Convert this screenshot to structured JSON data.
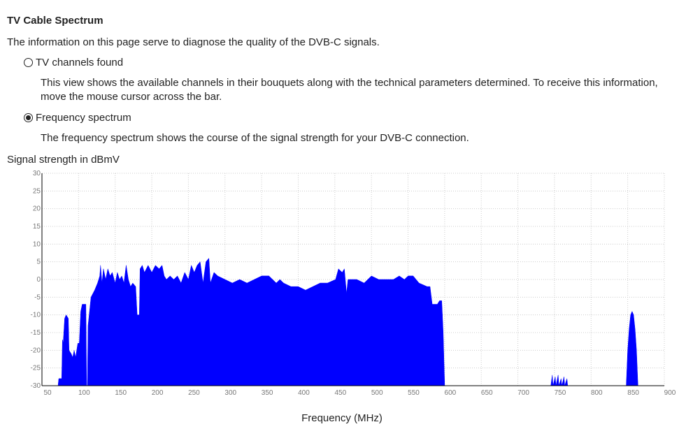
{
  "header": {
    "title": "TV Cable Spectrum",
    "intro": "The information on this page serve to diagnose the quality of the DVB-C signals."
  },
  "options": [
    {
      "label": "TV channels found",
      "description": "This view shows the available channels in their bouquets along with the technical parameters determined. To receive this information, move the mouse cursor across the bar.",
      "selected": false
    },
    {
      "label": "Frequency spectrum",
      "description": "The frequency spectrum shows the course of the signal strength for your DVB-C connection.",
      "selected": true
    }
  ],
  "chart_data": {
    "type": "area",
    "y_label": "Signal strength in dBmV",
    "x_label": "Frequency (MHz)",
    "xlim": [
      50,
      900
    ],
    "xticks": [
      50,
      100,
      150,
      200,
      250,
      300,
      350,
      400,
      450,
      500,
      550,
      600,
      650,
      700,
      750,
      800,
      850,
      900
    ],
    "ylim": [
      -30,
      30
    ],
    "yticks": [
      30,
      25,
      20,
      15,
      10,
      5,
      0,
      -5,
      -10,
      -15,
      -20,
      -25,
      -30
    ],
    "grid": true,
    "x": [
      72,
      73,
      77,
      78,
      79,
      81,
      83,
      86,
      87,
      90,
      92,
      94,
      96,
      99,
      101,
      103,
      105,
      110,
      111,
      112,
      113,
      117,
      122,
      126,
      129,
      130,
      132,
      134,
      137,
      140,
      143,
      146,
      150,
      153,
      156,
      159,
      162,
      165,
      168,
      171,
      174,
      178,
      180,
      183,
      184,
      187,
      190,
      195,
      200,
      205,
      210,
      214,
      217,
      220,
      225,
      230,
      235,
      240,
      245,
      250,
      254,
      258,
      262,
      266,
      270,
      274,
      278,
      280,
      285,
      290,
      300,
      310,
      320,
      330,
      340,
      350,
      360,
      370,
      375,
      380,
      390,
      400,
      410,
      420,
      430,
      440,
      451,
      455,
      460,
      463,
      466,
      468,
      475,
      480,
      490,
      500,
      510,
      520,
      530,
      538,
      545,
      550,
      557,
      565,
      576,
      580,
      583,
      590,
      593,
      596,
      598,
      600,
      650,
      745,
      747,
      748,
      751,
      752,
      755,
      756,
      759,
      760,
      763,
      764,
      767,
      768,
      848,
      850,
      852,
      854,
      856,
      858,
      860,
      862,
      864,
      900
    ],
    "series": [
      {
        "name": "Signal strength",
        "color": "#0000ff",
        "values": [
          -30,
          -28,
          -28,
          -17,
          -18,
          -11,
          -10,
          -11,
          -20,
          -21,
          -22,
          -20,
          -22,
          -18,
          -18,
          -9,
          -7,
          -7,
          -30,
          -30,
          -13,
          -5,
          -3,
          -1,
          1,
          4,
          -1,
          3,
          0,
          3,
          1,
          2,
          -1,
          2,
          0,
          1,
          -1,
          4,
          0,
          -2,
          -1,
          -2,
          -10,
          -10,
          3,
          4,
          2,
          4,
          2,
          4,
          3,
          4,
          1,
          0,
          1,
          0,
          1,
          -1,
          2,
          0,
          4,
          2,
          4,
          5,
          -1,
          5,
          6,
          -1,
          2,
          1,
          0,
          -1,
          0,
          -1,
          0,
          1,
          1,
          -1,
          0,
          -1,
          -2,
          -2,
          -3,
          -2,
          -1,
          -1,
          0,
          3,
          2,
          3,
          -4,
          0,
          0,
          0,
          -1,
          1,
          0,
          0,
          0,
          1,
          0,
          1,
          1,
          -1,
          -2,
          -2,
          -7,
          -7,
          -6,
          -6,
          -15,
          -30,
          -30,
          -30,
          -27,
          -30,
          -27.5,
          -30,
          -27,
          -30,
          -28,
          -30,
          -27.5,
          -30,
          -28,
          -30,
          -30,
          -20,
          -14,
          -10,
          -9,
          -10,
          -14,
          -20,
          -30,
          -30
        ]
      }
    ]
  }
}
